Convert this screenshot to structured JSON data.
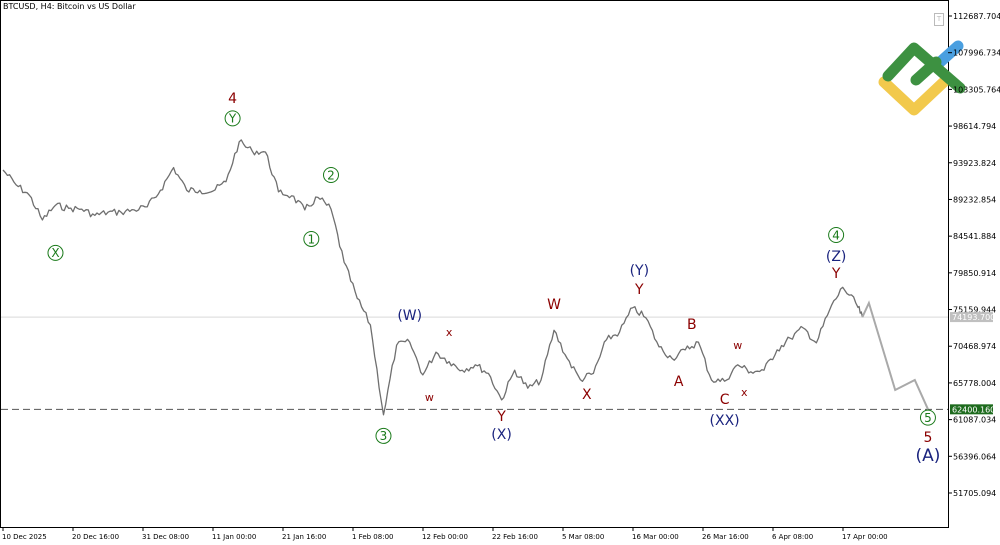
{
  "window": {
    "title": "BTCUSD, H4:  Bitcoin vs US Dollar",
    "toolbar_icon": "text-tool-icon",
    "toolbar_glyph": "T"
  },
  "colors": {
    "price_line": "#6f6f6f",
    "projection": "#a9a9a9",
    "current_line": "#d9d9d9",
    "support_line": "#2e7d32",
    "support_badge": "#1e6b1e",
    "current_badge": "#c0c0c0",
    "green_label": "#1a7a1a",
    "red_label": "#8b0000",
    "blue_label": "#1a237e"
  },
  "chart_data": {
    "type": "line",
    "title": "BTCUSD, H4:  Bitcoin vs US Dollar",
    "ylim": [
      49000,
      115000
    ],
    "grid": false,
    "y_ticks": [
      "112687.704",
      "107996.734",
      "103305.764",
      "98614.794",
      "93923.824",
      "89232.854",
      "84541.884",
      "79850.914",
      "75159.944",
      "70468.974",
      "65778.004",
      "61087.034",
      "56396.064",
      "51705.094"
    ],
    "x_ticks": [
      "10 Dec 2025",
      "20 Dec 16:00",
      "31 Dec 08:00",
      "11 Jan 00:00",
      "21 Jan 16:00",
      "1 Feb 08:00",
      "12 Feb 00:00",
      "22 Feb 16:00",
      "5 Mar 08:00",
      "16 Mar 00:00",
      "26 Mar 16:00",
      "6 Apr 08:00",
      "17 Apr 00:00"
    ],
    "series": [
      {
        "values": [
          [
            "2025-12-10",
            93000
          ],
          [
            "2025-12-12",
            91100
          ],
          [
            "2025-12-14",
            89800
          ],
          [
            "2025-12-16",
            86600
          ],
          [
            "2025-12-18",
            88500
          ],
          [
            "2025-12-20",
            88100
          ],
          [
            "2025-12-22",
            88000
          ],
          [
            "2025-12-24",
            87200
          ],
          [
            "2025-12-26",
            87600
          ],
          [
            "2025-12-28",
            87600
          ],
          [
            "2025-12-30",
            87900
          ],
          [
            "2026-01-01",
            88300
          ],
          [
            "2026-01-03",
            90400
          ],
          [
            "2026-01-05",
            93300
          ],
          [
            "2026-01-07",
            90400
          ],
          [
            "2026-01-09",
            90400
          ],
          [
            "2026-01-11",
            90300
          ],
          [
            "2026-01-13",
            91500
          ],
          [
            "2026-01-15",
            96600
          ],
          [
            "2026-01-17",
            95400
          ],
          [
            "2026-01-19",
            95300
          ],
          [
            "2026-01-21",
            90200
          ],
          [
            "2026-01-23",
            89700
          ],
          [
            "2026-01-25",
            87900
          ],
          [
            "2026-01-27",
            89500
          ],
          [
            "2026-01-29",
            88000
          ],
          [
            "2026-01-31",
            81200
          ],
          [
            "2026-02-02",
            76600
          ],
          [
            "2026-02-04",
            73200
          ],
          [
            "2026-02-06",
            61700
          ],
          [
            "2026-02-08",
            70600
          ],
          [
            "2026-02-10",
            71000
          ],
          [
            "2026-02-12",
            66800
          ],
          [
            "2026-02-14",
            69700
          ],
          [
            "2026-02-16",
            68500
          ],
          [
            "2026-02-18",
            67400
          ],
          [
            "2026-02-20",
            68100
          ],
          [
            "2026-02-22",
            67000
          ],
          [
            "2026-02-24",
            63600
          ],
          [
            "2026-02-26",
            67400
          ],
          [
            "2026-02-28",
            65100
          ],
          [
            "2026-03-02",
            66100
          ],
          [
            "2026-03-04",
            72500
          ],
          [
            "2026-03-06",
            68900
          ],
          [
            "2026-03-08",
            66200
          ],
          [
            "2026-03-10",
            67000
          ],
          [
            "2026-03-12",
            71300
          ],
          [
            "2026-03-14",
            72300
          ],
          [
            "2026-03-16",
            75400
          ],
          [
            "2026-03-18",
            74100
          ],
          [
            "2026-03-20",
            70400
          ],
          [
            "2026-03-22",
            68900
          ],
          [
            "2026-03-24",
            70000
          ],
          [
            "2026-03-26",
            71000
          ],
          [
            "2026-03-28",
            66150
          ],
          [
            "2026-03-30",
            66000
          ],
          [
            "2026-04-01",
            68100
          ],
          [
            "2026-04-03",
            67200
          ],
          [
            "2026-04-05",
            67400
          ],
          [
            "2026-04-07",
            70000
          ],
          [
            "2026-04-09",
            71500
          ],
          [
            "2026-04-11",
            72800
          ],
          [
            "2026-04-13",
            70900
          ],
          [
            "2026-04-15",
            75100
          ],
          [
            "2026-04-17",
            78000
          ],
          [
            "2026-04-19",
            76000
          ],
          [
            "2026-04-20",
            74193.7
          ]
        ]
      },
      {
        "values": [
          [
            "2026-04-20",
            74193.7
          ],
          [
            "2026-04-21",
            76000
          ],
          [
            "2026-04-25",
            64870
          ],
          [
            "2026-04-28",
            66150
          ],
          [
            "2026-04-30",
            62400.16
          ]
        ]
      }
    ],
    "hlines": [
      {
        "value": 74193.7,
        "label": "74193.700",
        "style": "solid"
      },
      {
        "value": 62400.16,
        "label": "62400.160",
        "style": "dashed"
      }
    ],
    "annotations": [
      {
        "text": "4",
        "style": "red",
        "date": "2026-01-14",
        "price": 102200
      },
      {
        "text": "Y",
        "style": "green-circle",
        "date": "2026-01-14",
        "price": 99600
      },
      {
        "text": "X",
        "style": "green-circle",
        "date": "2025-12-18",
        "price": 82400
      },
      {
        "text": "2",
        "style": "green-circle",
        "date": "2026-01-29",
        "price": 92360
      },
      {
        "text": "1",
        "style": "green-circle",
        "date": "2026-01-26",
        "price": 84180
      },
      {
        "text": "3",
        "style": "green-circle",
        "date": "2026-02-06",
        "price": 59000
      },
      {
        "text": "(W)",
        "style": "blue",
        "date": "2026-02-10",
        "price": 74460
      },
      {
        "text": "x",
        "style": "red-small",
        "date": "2026-02-16",
        "price": 72280
      },
      {
        "text": "w",
        "style": "red-small",
        "date": "2026-02-13",
        "price": 63980
      },
      {
        "text": "Y",
        "style": "red",
        "date": "2026-02-24",
        "price": 61550
      },
      {
        "text": "(X)",
        "style": "blue",
        "date": "2026-02-24",
        "price": 59250
      },
      {
        "text": "W",
        "style": "red",
        "date": "2026-03-04",
        "price": 75870
      },
      {
        "text": "X",
        "style": "red",
        "date": "2026-03-09",
        "price": 64360
      },
      {
        "text": "(Y)",
        "style": "blue",
        "date": "2026-03-17",
        "price": 80210
      },
      {
        "text": "Y",
        "style": "red",
        "date": "2026-03-17",
        "price": 77780
      },
      {
        "text": "B",
        "style": "red",
        "date": "2026-03-25",
        "price": 73310
      },
      {
        "text": "A",
        "style": "red",
        "date": "2026-03-23",
        "price": 66020
      },
      {
        "text": "C",
        "style": "red",
        "date": "2026-03-30",
        "price": 63720
      },
      {
        "text": "(XX)",
        "style": "blue",
        "date": "2026-03-30",
        "price": 61040
      },
      {
        "text": "w",
        "style": "red-small",
        "date": "2026-04-01",
        "price": 70630
      },
      {
        "text": "x",
        "style": "red-small",
        "date": "2026-04-02",
        "price": 64620
      },
      {
        "text": "4",
        "style": "green-circle",
        "date": "2026-04-16",
        "price": 84690
      },
      {
        "text": "(Z)",
        "style": "blue",
        "date": "2026-04-16",
        "price": 82000
      },
      {
        "text": "Y",
        "style": "red",
        "date": "2026-04-16",
        "price": 79830
      },
      {
        "text": "5",
        "style": "green-circle",
        "date": "2026-04-30",
        "price": 61340
      },
      {
        "text": "5",
        "style": "red",
        "date": "2026-04-30",
        "price": 58860
      },
      {
        "text": "(A)",
        "style": "blue-large",
        "date": "2026-04-30",
        "price": 56560
      }
    ]
  }
}
